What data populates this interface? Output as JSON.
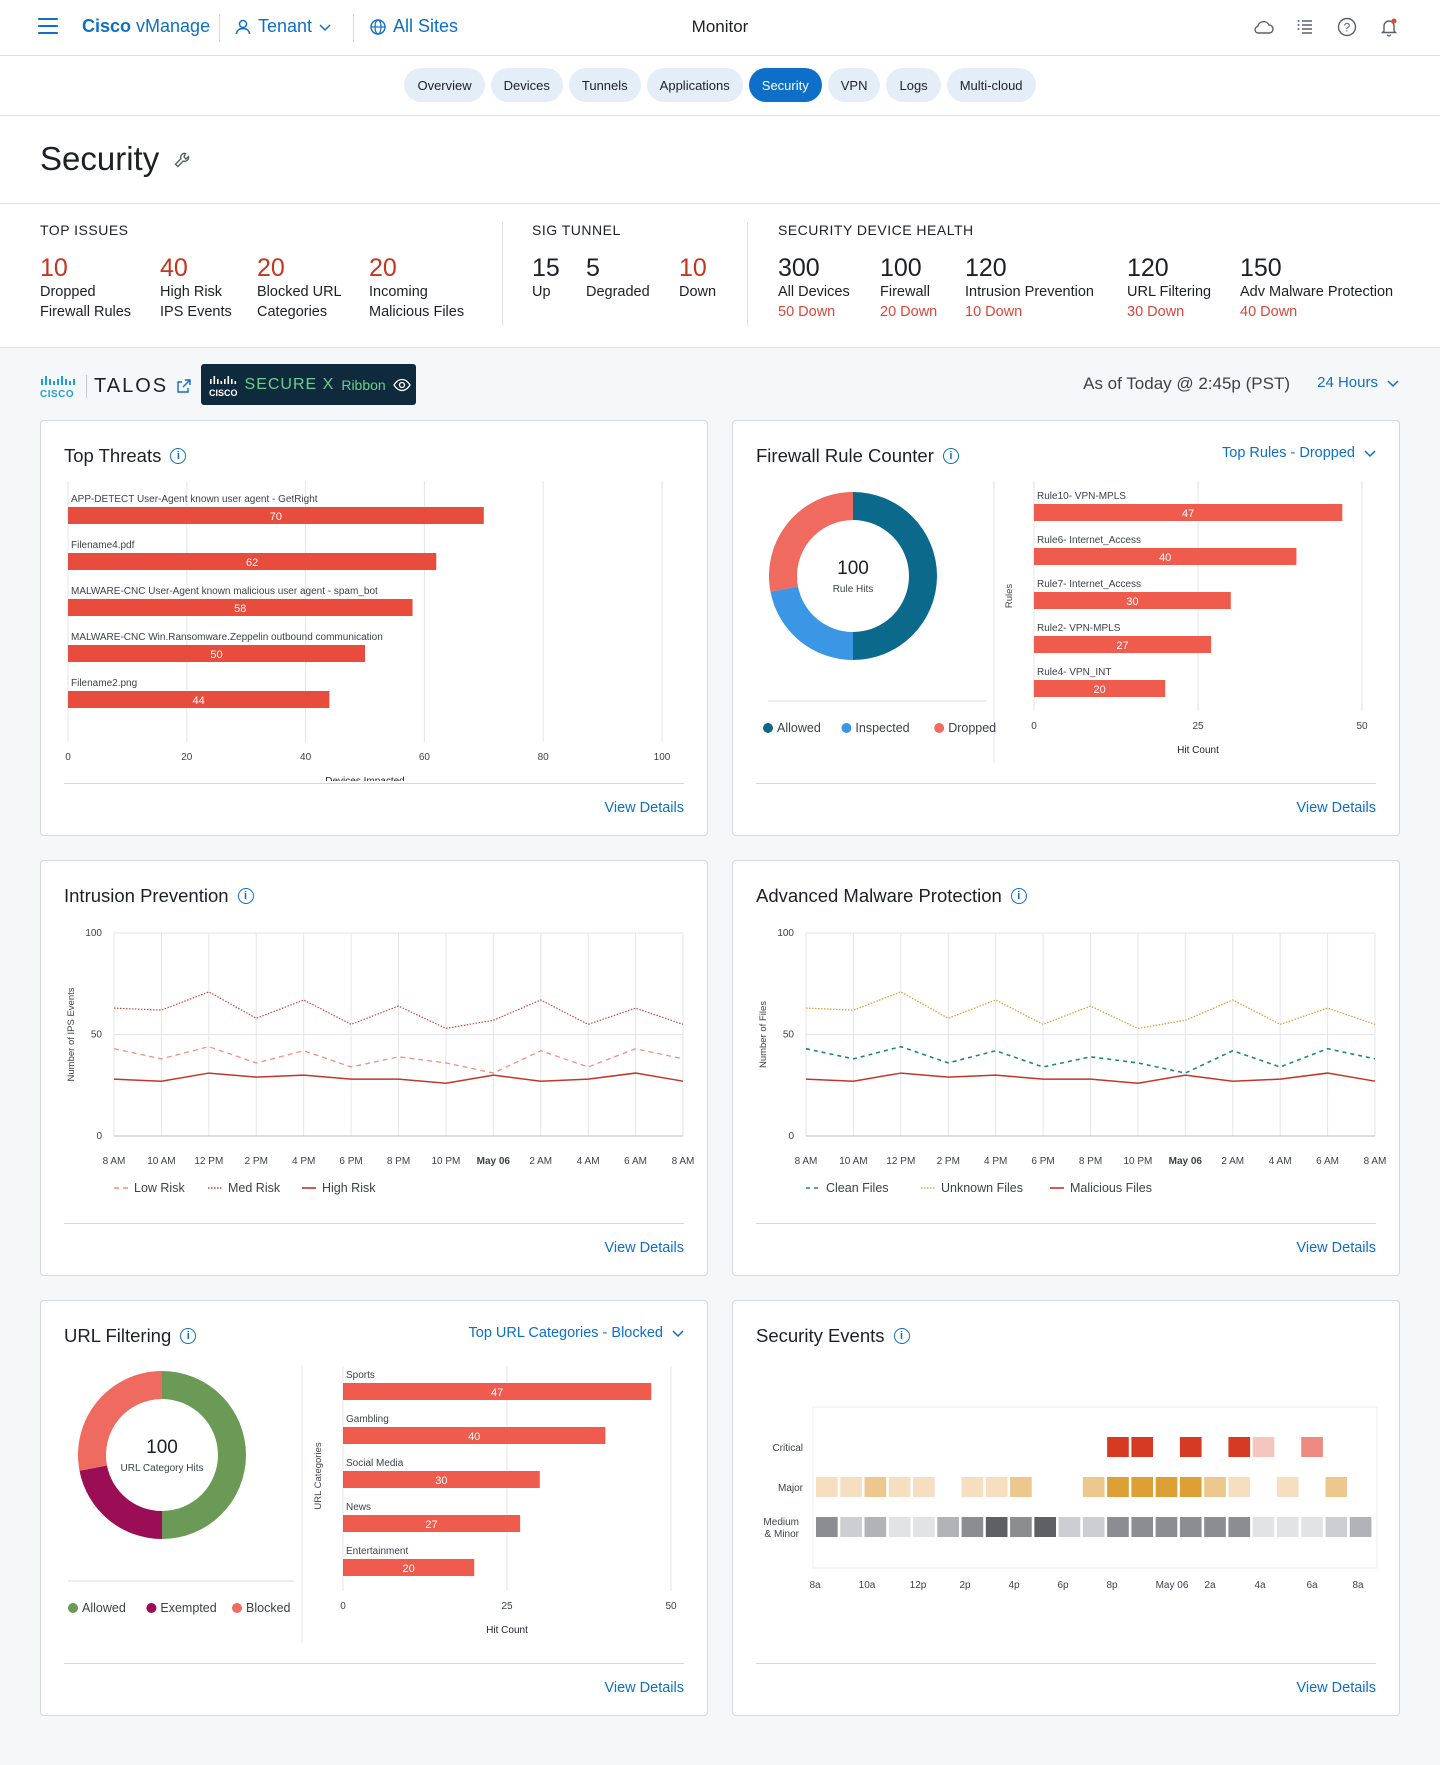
{
  "header": {
    "brand_bold": "Cisco",
    "brand_rest": " vManage",
    "tenant": "Tenant",
    "sites": "All Sites",
    "title": "Monitor"
  },
  "tabs": [
    "Overview",
    "Devices",
    "Tunnels",
    "Applications",
    "Security",
    "VPN",
    "Logs",
    "Multi-cloud"
  ],
  "active_tab": "Security",
  "page": {
    "title": "Security"
  },
  "summary": {
    "top_issues": {
      "title": "TOP ISSUES",
      "items": [
        {
          "value": "10",
          "l1": "Dropped",
          "l2": "Firewall Rules"
        },
        {
          "value": "40",
          "l1": "High Risk",
          "l2": "IPS Events"
        },
        {
          "value": "20",
          "l1": "Blocked URL",
          "l2": "Categories"
        },
        {
          "value": "20",
          "l1": "Incoming",
          "l2": "Malicious Files"
        }
      ]
    },
    "sig_tunnel": {
      "title": "SIG TUNNEL",
      "items": [
        {
          "value": "15",
          "label": "Up"
        },
        {
          "value": "5",
          "label": "Degraded"
        },
        {
          "value": "10",
          "label": "Down"
        }
      ]
    },
    "device_health": {
      "title": "SECURITY DEVICE HEALTH",
      "items": [
        {
          "value": "300",
          "label": "All Devices",
          "sub": "50 Down"
        },
        {
          "value": "100",
          "label": "Firewall",
          "sub": "20 Down"
        },
        {
          "value": "120",
          "label": "Intrusion Prevention",
          "sub": "10 Down"
        },
        {
          "value": "120",
          "label": "URL Filtering",
          "sub": "30 Down"
        },
        {
          "value": "150",
          "label": "Adv Malware Protection",
          "sub": "40 Down"
        }
      ]
    }
  },
  "filter": {
    "talos_cisco": "CISCO",
    "talos": "TALOS",
    "securex_cisco": "CISCO",
    "securex": "SECURE",
    "securex_x": "X",
    "ribbon": "Ribbon",
    "as_of": "As of Today @ 2:45p (PST)",
    "range": "24 Hours"
  },
  "cards": {
    "top_threats": {
      "title": "Top Threats",
      "view": "View Details"
    },
    "firewall": {
      "title": "Firewall Rule Counter",
      "dropdown": "Top Rules - Dropped",
      "view": "View Details"
    },
    "intrusion": {
      "title": "Intrusion Prevention",
      "view": "View Details"
    },
    "malware": {
      "title": "Advanced Malware Protection",
      "view": "View Details"
    },
    "url": {
      "title": "URL Filtering",
      "dropdown": "Top URL Categories - Blocked",
      "view": "View Details"
    },
    "events": {
      "title": "Security Events",
      "view": "View Details"
    }
  },
  "colors": {
    "accent": "#0d6fc7",
    "bar_red": "#e84c3d",
    "allowed": "#0b6a8c",
    "inspected": "#3b96e6",
    "dropped": "#ef6a5f",
    "url_allowed": "#6a9a55",
    "url_exempted": "#9b0e56",
    "url_blocked": "#ef6a5f"
  },
  "chart_data": [
    {
      "id": "top_threats",
      "type": "bar",
      "orientation": "horizontal",
      "categories": [
        "APP-DETECT User-Agent known user agent - GetRight",
        "Filename4.pdf",
        "MALWARE-CNC User-Agent known malicious user agent - spam_bot",
        "MALWARE-CNC Win.Ransomware.Zeppelin outbound communication",
        "Filename2.png"
      ],
      "values": [
        70,
        62,
        58,
        50,
        44
      ],
      "xlabel": "Devices Impacted",
      "xlim": [
        0,
        100
      ],
      "xticks": [
        0,
        20,
        40,
        60,
        80,
        100
      ]
    },
    {
      "id": "firewall_donut",
      "type": "pie",
      "center_value": "100",
      "center_label": "Rule Hits",
      "labels": [
        "Allowed",
        "Inspected",
        "Dropped"
      ],
      "values": [
        50,
        22,
        28
      ]
    },
    {
      "id": "firewall_rules",
      "type": "bar",
      "orientation": "horizontal",
      "categories": [
        "Rule10- VPN-MPLS",
        "Rule6- Internet_Access",
        "Rule7- Internet_Access",
        "Rule2- VPN-MPLS",
        "Rule4- VPN_INT"
      ],
      "values": [
        47,
        40,
        30,
        27,
        20
      ],
      "xlabel": "Hit Count",
      "ylabel": "Rules",
      "xlim": [
        0,
        50
      ],
      "xticks": [
        0,
        25,
        50
      ]
    },
    {
      "id": "intrusion_prevention",
      "type": "line",
      "x": [
        "8 AM",
        "10 AM",
        "12 PM",
        "2 PM",
        "4 PM",
        "6 PM",
        "8 PM",
        "10 PM",
        "May 06",
        "2 AM",
        "4 AM",
        "6 AM",
        "8 AM"
      ],
      "ylabel": "Number of IPS Events",
      "ylim": [
        0,
        100
      ],
      "yticks": [
        0,
        50,
        100
      ],
      "series": [
        {
          "name": "Low Risk",
          "values": [
            43,
            38,
            44,
            36,
            42,
            34,
            39,
            36,
            31,
            42,
            34,
            43,
            38
          ]
        },
        {
          "name": "Med Risk",
          "values": [
            63,
            62,
            71,
            58,
            67,
            55,
            64,
            53,
            57,
            67,
            55,
            63,
            55
          ]
        },
        {
          "name": "High Risk",
          "values": [
            28,
            27,
            31,
            29,
            30,
            28,
            28,
            26,
            30,
            27,
            28,
            31,
            27
          ]
        }
      ]
    },
    {
      "id": "malware_protection",
      "type": "line",
      "x": [
        "8 AM",
        "10 AM",
        "12 PM",
        "2 PM",
        "4 PM",
        "6 PM",
        "8 PM",
        "10 PM",
        "May 06",
        "2 AM",
        "4 AM",
        "6 AM",
        "8 AM"
      ],
      "ylabel": "Number of Files",
      "ylim": [
        0,
        100
      ],
      "yticks": [
        0,
        50,
        100
      ],
      "series": [
        {
          "name": "Clean Files",
          "values": [
            43,
            38,
            44,
            36,
            42,
            34,
            39,
            36,
            31,
            42,
            34,
            43,
            38
          ]
        },
        {
          "name": "Unknown Files",
          "values": [
            63,
            62,
            71,
            58,
            67,
            55,
            64,
            53,
            57,
            67,
            55,
            63,
            55
          ]
        },
        {
          "name": "Malicious Files",
          "values": [
            28,
            27,
            31,
            29,
            30,
            28,
            28,
            26,
            30,
            27,
            28,
            31,
            27
          ]
        }
      ]
    },
    {
      "id": "url_donut",
      "type": "pie",
      "center_value": "100",
      "center_label": "URL Category Hits",
      "labels": [
        "Allowed",
        "Exempted",
        "Blocked"
      ],
      "values": [
        50,
        22,
        28
      ]
    },
    {
      "id": "url_categories",
      "type": "bar",
      "orientation": "horizontal",
      "categories": [
        "Sports",
        "Gambling",
        "Social Media",
        "News",
        "Entertainment"
      ],
      "values": [
        47,
        40,
        30,
        27,
        20
      ],
      "xlabel": "Hit Count",
      "ylabel": "URL Categories",
      "xlim": [
        0,
        50
      ],
      "xticks": [
        0,
        25,
        50
      ]
    },
    {
      "id": "security_events",
      "type": "heatmap",
      "rows": [
        "Critical",
        "Major",
        "Medium & Minor"
      ],
      "x_labels": [
        "8a",
        "10a",
        "12p",
        "2p",
        "4p",
        "6p",
        "8p",
        "May 06",
        "2a",
        "4a",
        "6a",
        "8a"
      ],
      "columns": 23,
      "critical": [
        0,
        0,
        0,
        0,
        0,
        0,
        0,
        0,
        0,
        0,
        0,
        0,
        3,
        3,
        0,
        3,
        0,
        3,
        1,
        0,
        2,
        0,
        0
      ],
      "major": [
        1,
        1,
        2,
        1,
        1,
        0,
        1,
        1,
        2,
        0,
        0,
        2,
        3,
        3,
        3,
        3,
        2,
        1,
        0,
        1,
        0,
        2,
        0
      ],
      "medium_minor": [
        4,
        2,
        3,
        1,
        1,
        3,
        4,
        5,
        4,
        5,
        2,
        2,
        4,
        4,
        4,
        4,
        4,
        4,
        1,
        1,
        1,
        2,
        3
      ]
    }
  ]
}
